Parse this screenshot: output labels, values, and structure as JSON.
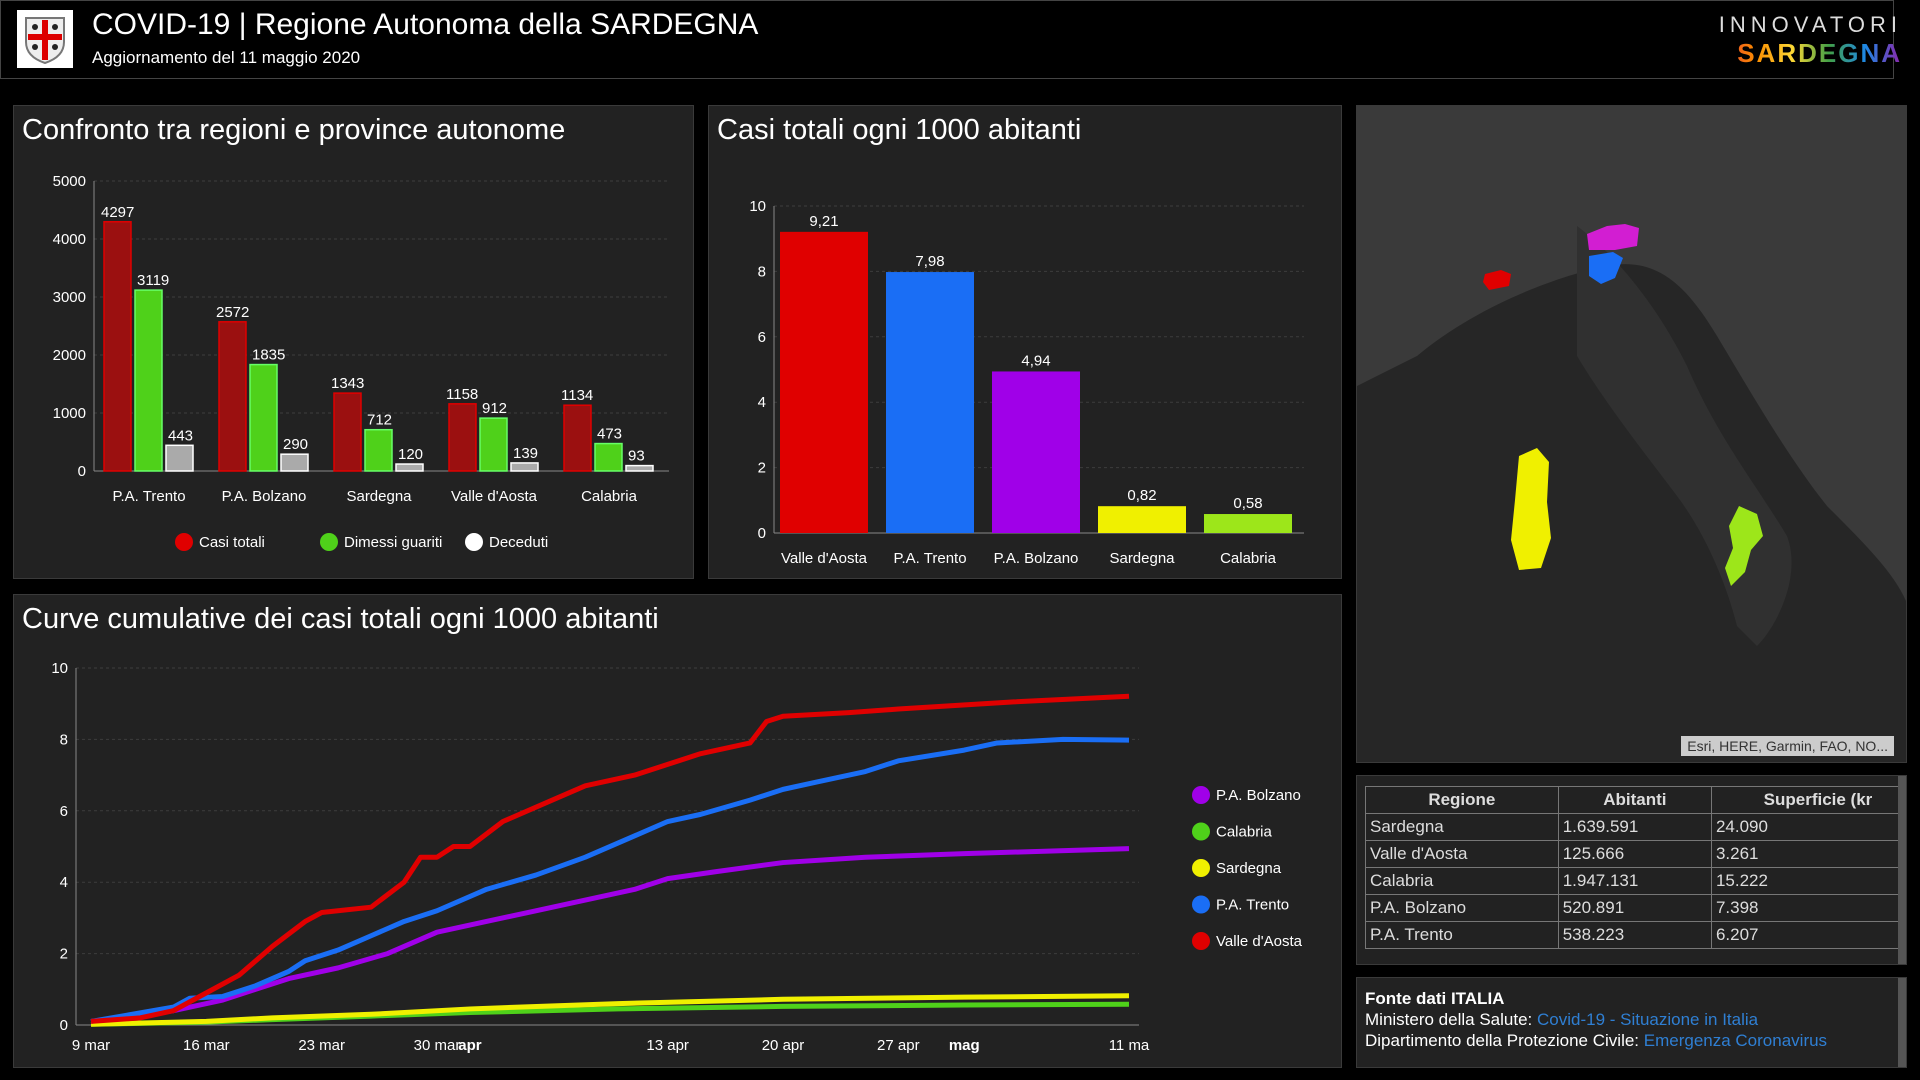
{
  "header": {
    "title": "COVID-19 | Regione Autonoma della SARDEGNA",
    "subtitle": "Aggiornamento del 11 maggio 2020",
    "brand_line1": "INNOVATORI",
    "brand_line2": "SARDEGNA"
  },
  "colors": {
    "red": "#e00000",
    "darkred": "#9b1010",
    "green": "#4fd11a",
    "grey": "#aaaaaa",
    "blue": "#1a6ef5",
    "purple": "#a000e8",
    "yellow": "#f0f000",
    "lime": "#9de61a"
  },
  "chart_data": [
    {
      "type": "bar",
      "title": "Confronto tra regioni e province autonome",
      "categories": [
        "P.A. Trento",
        "P.A. Bolzano",
        "Sardegna",
        "Valle d'Aosta",
        "Calabria"
      ],
      "ylim": [
        0,
        5000
      ],
      "yticks": [
        0,
        1000,
        2000,
        3000,
        4000,
        5000
      ],
      "series": [
        {
          "name": "Casi totali",
          "values": [
            4297,
            2572,
            1343,
            1158,
            1134
          ]
        },
        {
          "name": "Dimessi guariti",
          "values": [
            3119,
            1835,
            712,
            912,
            473
          ]
        },
        {
          "name": "Deceduti",
          "values": [
            443,
            290,
            120,
            139,
            93
          ]
        }
      ],
      "legend": "bottom"
    },
    {
      "type": "bar",
      "title": "Casi totali ogni 1000 abitanti",
      "categories": [
        "Valle d'Aosta",
        "P.A. Trento",
        "P.A. Bolzano",
        "Sardegna",
        "Calabria"
      ],
      "values": [
        9.21,
        7.98,
        4.94,
        0.82,
        0.58
      ],
      "labels": [
        "9,21",
        "7,98",
        "4,94",
        "0,82",
        "0,58"
      ],
      "ylim": [
        0,
        10
      ],
      "yticks": [
        0,
        2,
        4,
        6,
        8,
        10
      ]
    },
    {
      "type": "line",
      "title": "Curve cumulative dei casi totali ogni 1000 abitanti",
      "ylim": [
        0,
        10
      ],
      "yticks": [
        0,
        2,
        4,
        6,
        8,
        10
      ],
      "xrange_days": [
        0,
        63
      ],
      "xticks": [
        {
          "day": 0,
          "label": "9 mar"
        },
        {
          "day": 7,
          "label": "16 mar"
        },
        {
          "day": 14,
          "label": "23 mar"
        },
        {
          "day": 21,
          "label": "30 mar"
        },
        {
          "day": 23,
          "label": "apr",
          "bold": true
        },
        {
          "day": 35,
          "label": "13 apr"
        },
        {
          "day": 42,
          "label": "20 apr"
        },
        {
          "day": 49,
          "label": "27 apr"
        },
        {
          "day": 53,
          "label": "mag",
          "bold": true
        },
        {
          "day": 63,
          "label": "11 ma"
        }
      ],
      "legend": "right",
      "series": [
        {
          "name": "P.A. Bolzano",
          "color": "#a000e8",
          "points": [
            [
              0,
              0.1
            ],
            [
              5,
              0.4
            ],
            [
              8,
              0.7
            ],
            [
              10,
              1.0
            ],
            [
              12,
              1.3
            ],
            [
              15,
              1.6
            ],
            [
              18,
              2.0
            ],
            [
              21,
              2.6
            ],
            [
              24,
              2.9
            ],
            [
              27,
              3.2
            ],
            [
              30,
              3.5
            ],
            [
              33,
              3.8
            ],
            [
              35,
              4.1
            ],
            [
              38,
              4.3
            ],
            [
              42,
              4.55
            ],
            [
              47,
              4.7
            ],
            [
              53,
              4.8
            ],
            [
              63,
              4.94
            ]
          ]
        },
        {
          "name": "Calabria",
          "color": "#4fd11a",
          "points": [
            [
              0,
              0.02
            ],
            [
              7,
              0.08
            ],
            [
              11,
              0.15
            ],
            [
              17,
              0.25
            ],
            [
              23,
              0.35
            ],
            [
              32,
              0.45
            ],
            [
              42,
              0.52
            ],
            [
              53,
              0.56
            ],
            [
              63,
              0.58
            ]
          ]
        },
        {
          "name": "Sardegna",
          "color": "#f0f000",
          "points": [
            [
              0,
              0.02
            ],
            [
              7,
              0.1
            ],
            [
              11,
              0.2
            ],
            [
              17,
              0.3
            ],
            [
              23,
              0.45
            ],
            [
              32,
              0.6
            ],
            [
              42,
              0.72
            ],
            [
              53,
              0.78
            ],
            [
              63,
              0.82
            ]
          ]
        },
        {
          "name": "P.A. Trento",
          "color": "#1a6ef5",
          "points": [
            [
              0,
              0.1
            ],
            [
              5,
              0.5
            ],
            [
              6,
              0.75
            ],
            [
              8,
              0.8
            ],
            [
              10,
              1.1
            ],
            [
              12,
              1.5
            ],
            [
              13,
              1.8
            ],
            [
              15,
              2.1
            ],
            [
              17,
              2.5
            ],
            [
              19,
              2.9
            ],
            [
              21,
              3.2
            ],
            [
              24,
              3.8
            ],
            [
              27,
              4.2
            ],
            [
              30,
              4.7
            ],
            [
              33,
              5.3
            ],
            [
              35,
              5.7
            ],
            [
              37,
              5.9
            ],
            [
              40,
              6.3
            ],
            [
              42,
              6.6
            ],
            [
              44,
              6.8
            ],
            [
              47,
              7.1
            ],
            [
              49,
              7.4
            ],
            [
              53,
              7.7
            ],
            [
              55,
              7.9
            ],
            [
              59,
              8.0
            ],
            [
              63,
              7.98
            ]
          ]
        },
        {
          "name": "Valle d'Aosta",
          "color": "#e00000",
          "points": [
            [
              0,
              0.1
            ],
            [
              3,
              0.2
            ],
            [
              5,
              0.4
            ],
            [
              7,
              0.9
            ],
            [
              9,
              1.4
            ],
            [
              11,
              2.2
            ],
            [
              13,
              2.9
            ],
            [
              14,
              3.15
            ],
            [
              17,
              3.3
            ],
            [
              19,
              4.0
            ],
            [
              20,
              4.7
            ],
            [
              21,
              4.7
            ],
            [
              22,
              5.0
            ],
            [
              23,
              5.0
            ],
            [
              25,
              5.7
            ],
            [
              28,
              6.3
            ],
            [
              30,
              6.7
            ],
            [
              33,
              7.0
            ],
            [
              35,
              7.3
            ],
            [
              37,
              7.6
            ],
            [
              40,
              7.9
            ],
            [
              41,
              8.5
            ],
            [
              42,
              8.65
            ],
            [
              46,
              8.75
            ],
            [
              49,
              8.85
            ],
            [
              56,
              9.05
            ],
            [
              63,
              9.21
            ]
          ]
        }
      ]
    }
  ],
  "map": {
    "attribution": "Esri, HERE, Garmin, FAO, NO..."
  },
  "table": {
    "headers": [
      "Regione",
      "Abitanti",
      "Superficie (kr"
    ],
    "rows": [
      [
        "Sardegna",
        "1.639.591",
        "24.090"
      ],
      [
        "Valle d'Aosta",
        "125.666",
        "3.261"
      ],
      [
        "Calabria",
        "1.947.131",
        "15.222"
      ],
      [
        "P.A. Bolzano",
        "520.891",
        "7.398"
      ],
      [
        "P.A. Trento",
        "538.223",
        "6.207"
      ]
    ]
  },
  "source": {
    "title": "Fonte dati ITALIA",
    "line1_label": "Ministero della Salute: ",
    "line1_link": "Covid-19 - Situazione in Italia",
    "line2_label": "Dipartimento della Protezione Civile: ",
    "line2_link": "Emergenza Coronavirus"
  }
}
